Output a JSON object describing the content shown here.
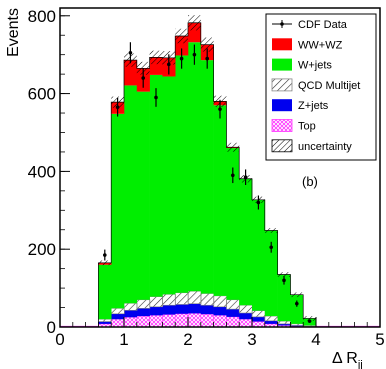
{
  "chart_data": {
    "type": "bar",
    "xlabel": "Δ R",
    "xlabel_sub": "jj",
    "ylabel": "Events",
    "xlim": [
      0,
      5
    ],
    "ylim": [
      0,
      820
    ],
    "x_ticks": [
      "0",
      "1",
      "2",
      "3",
      "4",
      "5"
    ],
    "y_ticks": [
      "0",
      "200",
      "400",
      "600",
      "800"
    ],
    "panel_label": "(b)",
    "bin_edges": [
      0.4,
      0.6,
      0.8,
      1.0,
      1.2,
      1.4,
      1.6,
      1.8,
      2.0,
      2.2,
      2.4,
      2.6,
      2.8,
      3.0,
      3.2,
      3.4,
      3.6,
      3.8,
      4.0
    ],
    "series": [
      {
        "name": "Top",
        "color": "#ff33ff",
        "hatch": "cross",
        "values": [
          0,
          8,
          20,
          25,
          28,
          30,
          32,
          34,
          35,
          33,
          30,
          26,
          20,
          14,
          8,
          4,
          2,
          1
        ]
      },
      {
        "name": "Z+jets",
        "color": "#0000ee",
        "values": [
          0,
          6,
          14,
          18,
          20,
          22,
          24,
          24,
          25,
          23,
          22,
          20,
          16,
          12,
          8,
          4,
          2,
          1
        ]
      },
      {
        "name": "QCD Multijet",
        "color": "#888888",
        "hatch": "diagonal",
        "values": [
          0,
          6,
          14,
          18,
          22,
          26,
          28,
          30,
          32,
          30,
          28,
          24,
          20,
          16,
          12,
          7,
          4,
          2
        ]
      },
      {
        "name": "W+jets",
        "color": "#00ee00",
        "values": [
          0,
          140,
          500,
          560,
          535,
          570,
          560,
          610,
          640,
          600,
          490,
          390,
          325,
          285,
          220,
          120,
          75,
          18
        ]
      },
      {
        "name": "WW+WZ",
        "color": "#ff0000",
        "values": [
          0,
          5,
          30,
          65,
          60,
          45,
          48,
          50,
          50,
          40,
          10,
          2,
          0,
          0,
          0,
          0,
          0,
          0
        ]
      }
    ],
    "data_points": {
      "name": "CDF Data",
      "values": [
        0,
        185,
        565,
        705,
        640,
        590,
        675,
        690,
        700,
        690,
        560,
        390,
        385,
        320,
        205,
        120,
        60,
        15
      ],
      "errors": [
        0,
        14,
        24,
        27,
        25,
        24,
        26,
        26,
        26,
        26,
        24,
        20,
        20,
        18,
        14,
        11,
        8,
        4
      ]
    },
    "legend": {
      "placement": "top-right",
      "entries": [
        "CDF Data",
        "WW+WZ",
        "W+jets",
        "QCD Multijet",
        "Z+jets",
        "Top",
        "uncertainty"
      ]
    },
    "colors": {
      "WW+WZ": "#ff0000",
      "W+jets": "#00ee00",
      "QCD Multijet": "#888888",
      "Z+jets": "#0000ee",
      "Top": "#ff33ff",
      "uncertainty": "#000000"
    }
  }
}
